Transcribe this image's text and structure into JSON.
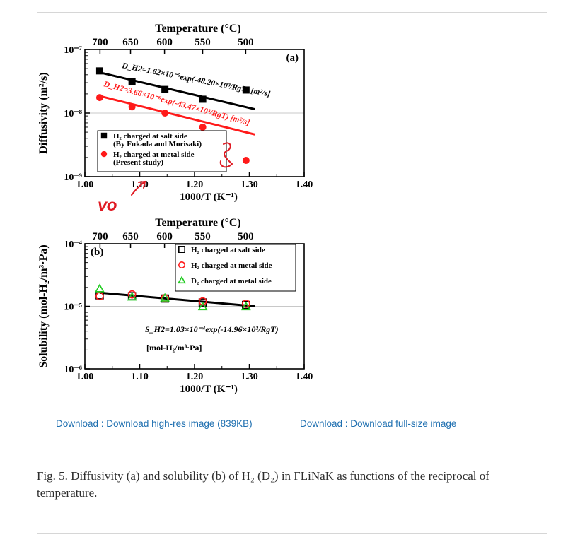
{
  "page": {
    "download_highres": "Download : Download high-res image (839KB)",
    "download_full": "Download : Download full-size image",
    "caption": "Fig. 5. Diffusivity (a) and solubility (b) of H₂ (D₂) in FLiNaK as functions of the reciprocal of temperature."
  },
  "colors": {
    "black": "#000000",
    "red": "#ff1a1a",
    "green": "#22cc22",
    "ink": "#e01b24",
    "link": "#1e6fb0"
  },
  "chart_data": [
    {
      "type": "scatter",
      "panel_label": "(a)",
      "xlabel": "1000/T (K⁻¹)",
      "ylabel": "Diffusivity (m²/s)",
      "top_axis_label": "Temperature (°C)",
      "top_ticks": [
        "700",
        "650",
        "600",
        "550",
        "500"
      ],
      "top_tick_values": [
        700,
        650,
        600,
        550,
        500
      ],
      "xlim": [
        1.0,
        1.4
      ],
      "xticks": [
        "1.00",
        "1.10",
        "1.20",
        "1.30",
        "1.40"
      ],
      "ylim": [
        1e-09,
        1e-07
      ],
      "yscale": "log",
      "yticks": [
        "10⁻⁹",
        "10⁻⁸",
        "10⁻⁷"
      ],
      "series": [
        {
          "name": "H₂ charged at salt side (By Fukada and Morisaki)",
          "marker": "filled-square",
          "color": "#000000",
          "x": [
            1.027,
            1.086,
            1.146,
            1.215,
            1.294
          ],
          "y": [
            4.6e-08,
            3.1e-08,
            2.35e-08,
            1.65e-08,
            2.3e-08
          ]
        },
        {
          "name": "H₂ charged at metal side (Present study)",
          "marker": "filled-circle",
          "color": "#ff1a1a",
          "x": [
            1.027,
            1.086,
            1.146,
            1.215,
            1.294
          ],
          "y": [
            1.75e-08,
            1.25e-08,
            1e-08,
            6e-09,
            1.8e-09
          ]
        }
      ],
      "fits": [
        {
          "label": "D_H2=1.62×10⁻⁵exp(-48.20×10³/RgT) [m²/s]",
          "color": "#000000",
          "x": [
            1.027,
            1.31
          ],
          "y": [
            4.35e-08,
            1.15e-08
          ]
        },
        {
          "label": "D_H2=3.66×10⁻⁶exp(-43.47×10³/RgT) [m²/s]",
          "color": "#ff1a1a",
          "x": [
            1.027,
            1.31
          ],
          "y": [
            1.85e-08,
            4.6e-09
          ]
        }
      ],
      "legend": [
        {
          "lines": [
            "H₂ charged at salt side",
            "(By Fukada and Morisaki)"
          ],
          "marker": "filled-square",
          "color": "#000000"
        },
        {
          "lines": [
            "H₂ charged at metal side",
            "(Present study)"
          ],
          "marker": "filled-circle",
          "color": "#ff1a1a"
        }
      ],
      "handwritten_marks": [
        "VO"
      ]
    },
    {
      "type": "scatter",
      "panel_label": "(b)",
      "xlabel": "1000/T (K⁻¹)",
      "ylabel": "Solubility (mol-H₂/m³·Pa)",
      "top_axis_label": "Temperature (°C)",
      "top_ticks": [
        "700",
        "650",
        "600",
        "550",
        "500"
      ],
      "top_tick_values": [
        700,
        650,
        600,
        550,
        500
      ],
      "xlim": [
        1.0,
        1.4
      ],
      "xticks": [
        "1.00",
        "1.10",
        "1.20",
        "1.30",
        "1.40"
      ],
      "ylim": [
        1e-06,
        0.0001
      ],
      "yscale": "log",
      "yticks": [
        "10⁻⁶",
        "10⁻⁵",
        "10⁻⁴"
      ],
      "series": [
        {
          "name": "H₂ charged at salt side",
          "marker": "open-square",
          "color": "#000000",
          "x": [
            1.027,
            1.086,
            1.146,
            1.215,
            1.294
          ],
          "y": [
            1.5e-05,
            1.45e-05,
            1.33e-05,
            1.15e-05,
            1.05e-05
          ]
        },
        {
          "name": "H₂ charged at metal side",
          "marker": "open-circle",
          "color": "#ff1a1a",
          "x": [
            1.027,
            1.086,
            1.146,
            1.215,
            1.294
          ],
          "y": [
            1.45e-05,
            1.55e-05,
            1.35e-05,
            1.2e-05,
            1.1e-05
          ]
        },
        {
          "name": "D₂ charged at metal side",
          "marker": "open-triangle",
          "color": "#22cc22",
          "x": [
            1.027,
            1.086,
            1.146,
            1.215,
            1.294
          ],
          "y": [
            1.9e-05,
            1.4e-05,
            1.35e-05,
            9.8e-06,
            9.8e-06
          ]
        }
      ],
      "fits": [
        {
          "label": "S_H2=1.03×10⁻⁴exp(-14.96×10³/RgT)",
          "label2": "[mol-H₂/m³·Pa]",
          "color": "#000000",
          "x": [
            1.027,
            1.31
          ],
          "y": [
            1.65e-05,
            1e-05
          ]
        }
      ],
      "legend": [
        {
          "lines": [
            "H₂ charged at salt side"
          ],
          "marker": "open-square",
          "color": "#000000"
        },
        {
          "lines": [
            "H₂ charged at metal side"
          ],
          "marker": "open-circle",
          "color": "#ff1a1a"
        },
        {
          "lines": [
            "D₂ charged at metal side"
          ],
          "marker": "open-triangle",
          "color": "#22cc22"
        }
      ]
    }
  ]
}
